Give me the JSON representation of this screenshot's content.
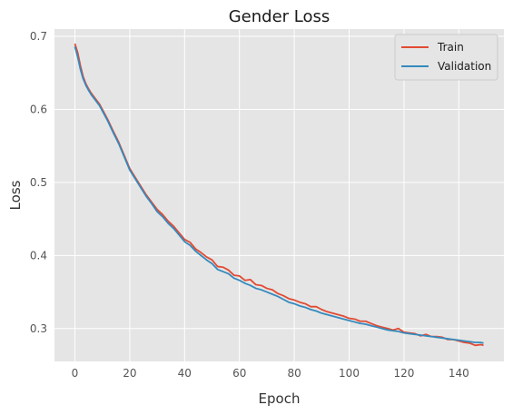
{
  "chart_data": {
    "type": "line",
    "title": "Gender Loss",
    "xlabel": "Epoch",
    "ylabel": "Loss",
    "xlim": [
      -7.45,
      156.45
    ],
    "ylim": [
      0.255,
      0.71
    ],
    "xticks": [
      0,
      20,
      40,
      60,
      80,
      100,
      120,
      140
    ],
    "yticks": [
      0.3,
      0.4,
      0.5,
      0.6,
      0.7
    ],
    "ytick_labels": [
      "0.3",
      "0.4",
      "0.5",
      "0.6",
      "0.7"
    ],
    "grid": true,
    "legend_position": "top-right",
    "series": [
      {
        "name": "Train",
        "color": "#E24A33",
        "points": [
          [
            0,
            0.69
          ],
          [
            1,
            0.678
          ],
          [
            2,
            0.66
          ],
          [
            3,
            0.645
          ],
          [
            4,
            0.635
          ],
          [
            5,
            0.628
          ],
          [
            6,
            0.622
          ],
          [
            7,
            0.617
          ],
          [
            8,
            0.612
          ],
          [
            9,
            0.607
          ],
          [
            10,
            0.6
          ],
          [
            12,
            0.586
          ],
          [
            14,
            0.57
          ],
          [
            16,
            0.555
          ],
          [
            18,
            0.537
          ],
          [
            20,
            0.519
          ],
          [
            22,
            0.507
          ],
          [
            24,
            0.495
          ],
          [
            26,
            0.483
          ],
          [
            28,
            0.473
          ],
          [
            30,
            0.463
          ],
          [
            32,
            0.456
          ],
          [
            34,
            0.447
          ],
          [
            36,
            0.44
          ],
          [
            38,
            0.431
          ],
          [
            40,
            0.422
          ],
          [
            42,
            0.418
          ],
          [
            44,
            0.409
          ],
          [
            46,
            0.404
          ],
          [
            48,
            0.398
          ],
          [
            50,
            0.394
          ],
          [
            52,
            0.385
          ],
          [
            54,
            0.384
          ],
          [
            56,
            0.38
          ],
          [
            58,
            0.373
          ],
          [
            60,
            0.372
          ],
          [
            62,
            0.366
          ],
          [
            64,
            0.367
          ],
          [
            66,
            0.36
          ],
          [
            68,
            0.359
          ],
          [
            70,
            0.355
          ],
          [
            72,
            0.353
          ],
          [
            74,
            0.348
          ],
          [
            76,
            0.345
          ],
          [
            78,
            0.341
          ],
          [
            80,
            0.339
          ],
          [
            82,
            0.336
          ],
          [
            84,
            0.334
          ],
          [
            86,
            0.33
          ],
          [
            88,
            0.33
          ],
          [
            90,
            0.326
          ],
          [
            92,
            0.323
          ],
          [
            94,
            0.321
          ],
          [
            96,
            0.319
          ],
          [
            98,
            0.317
          ],
          [
            100,
            0.314
          ],
          [
            102,
            0.313
          ],
          [
            104,
            0.31
          ],
          [
            106,
            0.31
          ],
          [
            108,
            0.307
          ],
          [
            110,
            0.304
          ],
          [
            112,
            0.302
          ],
          [
            114,
            0.3
          ],
          [
            116,
            0.298
          ],
          [
            118,
            0.3
          ],
          [
            120,
            0.295
          ],
          [
            122,
            0.294
          ],
          [
            124,
            0.293
          ],
          [
            126,
            0.29
          ],
          [
            128,
            0.292
          ],
          [
            130,
            0.289
          ],
          [
            132,
            0.289
          ],
          [
            134,
            0.288
          ],
          [
            136,
            0.285
          ],
          [
            138,
            0.285
          ],
          [
            140,
            0.283
          ],
          [
            142,
            0.281
          ],
          [
            144,
            0.28
          ],
          [
            146,
            0.277
          ],
          [
            148,
            0.278
          ],
          [
            149,
            0.277
          ]
        ]
      },
      {
        "name": "Validation",
        "color": "#348ABD",
        "points": [
          [
            0,
            0.686
          ],
          [
            1,
            0.672
          ],
          [
            2,
            0.655
          ],
          [
            3,
            0.642
          ],
          [
            4,
            0.633
          ],
          [
            5,
            0.626
          ],
          [
            6,
            0.62
          ],
          [
            7,
            0.615
          ],
          [
            8,
            0.61
          ],
          [
            9,
            0.605
          ],
          [
            10,
            0.598
          ],
          [
            12,
            0.584
          ],
          [
            14,
            0.568
          ],
          [
            16,
            0.553
          ],
          [
            18,
            0.535
          ],
          [
            20,
            0.517
          ],
          [
            22,
            0.505
          ],
          [
            24,
            0.493
          ],
          [
            26,
            0.481
          ],
          [
            28,
            0.471
          ],
          [
            30,
            0.46
          ],
          [
            32,
            0.453
          ],
          [
            34,
            0.444
          ],
          [
            36,
            0.437
          ],
          [
            38,
            0.428
          ],
          [
            40,
            0.419
          ],
          [
            42,
            0.414
          ],
          [
            44,
            0.406
          ],
          [
            46,
            0.4
          ],
          [
            48,
            0.394
          ],
          [
            50,
            0.389
          ],
          [
            52,
            0.381
          ],
          [
            54,
            0.378
          ],
          [
            56,
            0.375
          ],
          [
            58,
            0.369
          ],
          [
            60,
            0.366
          ],
          [
            62,
            0.362
          ],
          [
            64,
            0.359
          ],
          [
            66,
            0.355
          ],
          [
            68,
            0.353
          ],
          [
            70,
            0.35
          ],
          [
            72,
            0.347
          ],
          [
            74,
            0.344
          ],
          [
            76,
            0.34
          ],
          [
            78,
            0.336
          ],
          [
            80,
            0.334
          ],
          [
            82,
            0.331
          ],
          [
            84,
            0.329
          ],
          [
            86,
            0.326
          ],
          [
            88,
            0.324
          ],
          [
            90,
            0.321
          ],
          [
            92,
            0.319
          ],
          [
            94,
            0.317
          ],
          [
            96,
            0.315
          ],
          [
            98,
            0.313
          ],
          [
            100,
            0.311
          ],
          [
            102,
            0.309
          ],
          [
            104,
            0.307
          ],
          [
            106,
            0.306
          ],
          [
            108,
            0.304
          ],
          [
            110,
            0.302
          ],
          [
            112,
            0.3
          ],
          [
            114,
            0.298
          ],
          [
            116,
            0.297
          ],
          [
            118,
            0.296
          ],
          [
            120,
            0.294
          ],
          [
            122,
            0.293
          ],
          [
            124,
            0.292
          ],
          [
            126,
            0.291
          ],
          [
            128,
            0.29
          ],
          [
            130,
            0.289
          ],
          [
            132,
            0.288
          ],
          [
            134,
            0.287
          ],
          [
            136,
            0.286
          ],
          [
            138,
            0.285
          ],
          [
            140,
            0.284
          ],
          [
            142,
            0.283
          ],
          [
            144,
            0.282
          ],
          [
            146,
            0.281
          ],
          [
            148,
            0.281
          ],
          [
            149,
            0.28
          ]
        ]
      }
    ]
  }
}
